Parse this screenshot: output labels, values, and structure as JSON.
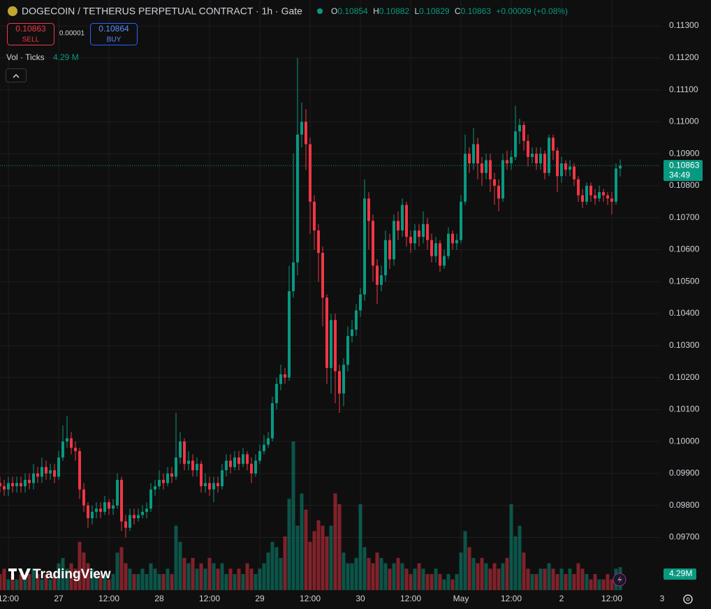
{
  "header": {
    "symbol": "DOGECOIN / TETHERUS PERPETUAL CONTRACT · 1h · Gate",
    "ohlc_labels": [
      "O",
      "H",
      "L",
      "C"
    ],
    "ohlc_values": [
      0.10854,
      0.10882,
      0.10829,
      0.10863
    ],
    "change": "+0.00009 (+0.08%)"
  },
  "trade": {
    "sell_price": 0.10863,
    "sell_label": "SELL",
    "spread": 1e-05,
    "buy_price": 0.10864,
    "buy_label": "BUY"
  },
  "volume_indicator": {
    "label": "Vol · Ticks",
    "value_label": "4.29 M"
  },
  "branding": "TradingView",
  "chart_data": {
    "type": "candlestick",
    "up_color": "#089981",
    "down_color": "#f23645",
    "candles": [
      [
        0.0987,
        0.0989,
        0.0984,
        0.0986
      ],
      [
        0.0986,
        0.0988,
        0.0983,
        0.0985
      ],
      [
        0.0985,
        0.0989,
        0.0983,
        0.0987
      ],
      [
        0.0987,
        0.0989,
        0.0984,
        0.0986
      ],
      [
        0.0986,
        0.0989,
        0.0984,
        0.0987
      ],
      [
        0.0987,
        0.0989,
        0.0984,
        0.0986
      ],
      [
        0.0986,
        0.099,
        0.0984,
        0.0988
      ],
      [
        0.0988,
        0.099,
        0.0985,
        0.0987
      ],
      [
        0.0987,
        0.0993,
        0.0985,
        0.099
      ],
      [
        0.099,
        0.0992,
        0.0987,
        0.0989
      ],
      [
        0.0989,
        0.0995,
        0.0987,
        0.0992
      ],
      [
        0.0992,
        0.0994,
        0.0988,
        0.099
      ],
      [
        0.099,
        0.0993,
        0.0988,
        0.0991
      ],
      [
        0.0991,
        0.0993,
        0.0987,
        0.0989
      ],
      [
        0.0989,
        0.0997,
        0.0988,
        0.0995
      ],
      [
        0.0995,
        0.1005,
        0.0994,
        0.1
      ],
      [
        0.1,
        0.1008,
        0.0998,
        0.1001
      ],
      [
        0.1001,
        0.1003,
        0.0996,
        0.0998
      ],
      [
        0.0998,
        0.1,
        0.0994,
        0.0997
      ],
      [
        0.0997,
        0.0998,
        0.0982,
        0.0985
      ],
      [
        0.0985,
        0.0987,
        0.0978,
        0.098
      ],
      [
        0.098,
        0.0981,
        0.0973,
        0.0976
      ],
      [
        0.0976,
        0.098,
        0.0974,
        0.0978
      ],
      [
        0.0978,
        0.0981,
        0.0976,
        0.0979
      ],
      [
        0.0979,
        0.0981,
        0.0976,
        0.0978
      ],
      [
        0.0978,
        0.0983,
        0.0977,
        0.0981
      ],
      [
        0.0981,
        0.0982,
        0.0977,
        0.0979
      ],
      [
        0.0979,
        0.0982,
        0.0977,
        0.098
      ],
      [
        0.098,
        0.099,
        0.0979,
        0.0988
      ],
      [
        0.0988,
        0.0989,
        0.0972,
        0.0975
      ],
      [
        0.0975,
        0.0977,
        0.097,
        0.0973
      ],
      [
        0.0973,
        0.0979,
        0.0972,
        0.0977
      ],
      [
        0.0977,
        0.0979,
        0.0974,
        0.0976
      ],
      [
        0.0976,
        0.0979,
        0.0975,
        0.0977
      ],
      [
        0.0977,
        0.098,
        0.0976,
        0.0978
      ],
      [
        0.0978,
        0.0981,
        0.0976,
        0.0979
      ],
      [
        0.0979,
        0.0987,
        0.0978,
        0.0985
      ],
      [
        0.0985,
        0.0988,
        0.0983,
        0.0986
      ],
      [
        0.0986,
        0.0991,
        0.0985,
        0.0988
      ],
      [
        0.0988,
        0.099,
        0.0985,
        0.0987
      ],
      [
        0.0987,
        0.0992,
        0.0986,
        0.099
      ],
      [
        0.099,
        0.0992,
        0.0987,
        0.0989
      ],
      [
        0.0989,
        0.1009,
        0.0988,
        0.0995
      ],
      [
        0.0995,
        0.1003,
        0.0993,
        0.1
      ],
      [
        0.1,
        0.1001,
        0.0991,
        0.0993
      ],
      [
        0.0993,
        0.0997,
        0.0991,
        0.0994
      ],
      [
        0.0994,
        0.0996,
        0.0989,
        0.0991
      ],
      [
        0.0991,
        0.0995,
        0.0989,
        0.0993
      ],
      [
        0.0993,
        0.0994,
        0.0984,
        0.0986
      ],
      [
        0.0986,
        0.099,
        0.0984,
        0.0987
      ],
      [
        0.0987,
        0.0989,
        0.0983,
        0.0985
      ],
      [
        0.0985,
        0.0989,
        0.0981,
        0.0987
      ],
      [
        0.0987,
        0.0989,
        0.0984,
        0.0986
      ],
      [
        0.0986,
        0.0993,
        0.0985,
        0.0991
      ],
      [
        0.0991,
        0.0996,
        0.0989,
        0.0994
      ],
      [
        0.0994,
        0.0996,
        0.099,
        0.0992
      ],
      [
        0.0992,
        0.0997,
        0.0991,
        0.0995
      ],
      [
        0.0995,
        0.0997,
        0.0991,
        0.0993
      ],
      [
        0.0993,
        0.0998,
        0.0992,
        0.0996
      ],
      [
        0.0996,
        0.0997,
        0.0991,
        0.0993
      ],
      [
        0.0993,
        0.0995,
        0.0987,
        0.099
      ],
      [
        0.099,
        0.0996,
        0.0989,
        0.0994
      ],
      [
        0.0994,
        0.0999,
        0.0993,
        0.0997
      ],
      [
        0.0997,
        0.1002,
        0.0996,
        0.0999
      ],
      [
        0.0999,
        0.1003,
        0.0998,
        0.1001
      ],
      [
        0.1001,
        0.1014,
        0.1,
        0.1012
      ],
      [
        0.1012,
        0.102,
        0.101,
        0.1018
      ],
      [
        0.1018,
        0.1024,
        0.1016,
        0.1021
      ],
      [
        0.1021,
        0.1023,
        0.1018,
        0.102
      ],
      [
        0.102,
        0.1055,
        0.1019,
        0.1047
      ],
      [
        0.1047,
        0.109,
        0.1045,
        0.1056
      ],
      [
        0.1056,
        0.112,
        0.1052,
        0.1096
      ],
      [
        0.1096,
        0.1106,
        0.1092,
        0.11
      ],
      [
        0.11,
        0.1104,
        0.1085,
        0.1093
      ],
      [
        0.1093,
        0.1095,
        0.1065,
        0.1075
      ],
      [
        0.1075,
        0.1077,
        0.106,
        0.1066
      ],
      [
        0.1066,
        0.1068,
        0.105,
        0.1059
      ],
      [
        0.1059,
        0.1061,
        0.1036,
        0.1045
      ],
      [
        0.1045,
        0.1046,
        0.1018,
        0.1023
      ],
      [
        0.1023,
        0.104,
        0.1015,
        0.1038
      ],
      [
        0.1038,
        0.104,
        0.1012,
        0.1022
      ],
      [
        0.1022,
        0.1024,
        0.1009,
        0.1015
      ],
      [
        0.1015,
        0.1026,
        0.1011,
        0.1024
      ],
      [
        0.1024,
        0.1036,
        0.1022,
        0.1033
      ],
      [
        0.1033,
        0.1038,
        0.1031,
        0.1035
      ],
      [
        0.1035,
        0.1043,
        0.1033,
        0.1041
      ],
      [
        0.1041,
        0.1048,
        0.1039,
        0.1046
      ],
      [
        0.1046,
        0.1082,
        0.1044,
        0.1076
      ],
      [
        0.1076,
        0.1078,
        0.106,
        0.1069
      ],
      [
        0.1069,
        0.1071,
        0.105,
        0.1055
      ],
      [
        0.1055,
        0.1057,
        0.1043,
        0.1049
      ],
      [
        0.1049,
        0.1055,
        0.1047,
        0.1052
      ],
      [
        0.1052,
        0.1066,
        0.105,
        0.1063
      ],
      [
        0.1063,
        0.1065,
        0.1054,
        0.1057
      ],
      [
        0.1057,
        0.1071,
        0.1055,
        0.1069
      ],
      [
        0.1069,
        0.1072,
        0.1063,
        0.1066
      ],
      [
        0.1066,
        0.1076,
        0.1064,
        0.1074
      ],
      [
        0.1074,
        0.1075,
        0.1061,
        0.1064
      ],
      [
        0.1064,
        0.1066,
        0.1059,
        0.1062
      ],
      [
        0.1062,
        0.1068,
        0.106,
        0.1066
      ],
      [
        0.1066,
        0.1068,
        0.1061,
        0.1064
      ],
      [
        0.1064,
        0.1072,
        0.1062,
        0.1068
      ],
      [
        0.1068,
        0.107,
        0.106,
        0.1063
      ],
      [
        0.1063,
        0.1065,
        0.1056,
        0.1058
      ],
      [
        0.1058,
        0.1064,
        0.1056,
        0.1062
      ],
      [
        0.1062,
        0.1063,
        0.1053,
        0.1055
      ],
      [
        0.1055,
        0.106,
        0.1054,
        0.1058
      ],
      [
        0.1058,
        0.1067,
        0.1057,
        0.1065
      ],
      [
        0.1065,
        0.1066,
        0.106,
        0.1062
      ],
      [
        0.1062,
        0.1065,
        0.106,
        0.1063
      ],
      [
        0.1063,
        0.1077,
        0.1062,
        0.1075
      ],
      [
        0.1075,
        0.1096,
        0.1074,
        0.109
      ],
      [
        0.109,
        0.1092,
        0.1084,
        0.1087
      ],
      [
        0.1087,
        0.1098,
        0.1085,
        0.1093
      ],
      [
        0.1093,
        0.1095,
        0.1082,
        0.1087
      ],
      [
        0.1087,
        0.1089,
        0.108,
        0.1084
      ],
      [
        0.1084,
        0.109,
        0.1082,
        0.1088
      ],
      [
        0.1088,
        0.109,
        0.1078,
        0.1082
      ],
      [
        0.1082,
        0.1084,
        0.1074,
        0.108
      ],
      [
        0.108,
        0.1082,
        0.1072,
        0.1076
      ],
      [
        0.1076,
        0.109,
        0.1075,
        0.1088
      ],
      [
        0.1088,
        0.1091,
        0.1085,
        0.1087
      ],
      [
        0.1087,
        0.1091,
        0.1085,
        0.1089
      ],
      [
        0.1089,
        0.1105,
        0.1088,
        0.1097
      ],
      [
        0.1097,
        0.1101,
        0.1093,
        0.1099
      ],
      [
        0.1099,
        0.11,
        0.1091,
        0.1094
      ],
      [
        0.1094,
        0.1096,
        0.1086,
        0.1089
      ],
      [
        0.1089,
        0.1092,
        0.1087,
        0.109
      ],
      [
        0.109,
        0.1092,
        0.1085,
        0.1087
      ],
      [
        0.1087,
        0.1092,
        0.1085,
        0.109
      ],
      [
        0.109,
        0.1091,
        0.1082,
        0.1084
      ],
      [
        0.1084,
        0.1096,
        0.1083,
        0.1095
      ],
      [
        0.1095,
        0.1096,
        0.1088,
        0.1091
      ],
      [
        0.1091,
        0.1092,
        0.1078,
        0.1083
      ],
      [
        0.1083,
        0.1089,
        0.1081,
        0.1087
      ],
      [
        0.1087,
        0.1088,
        0.1083,
        0.1085
      ],
      [
        0.1085,
        0.1088,
        0.1083,
        0.1086
      ],
      [
        0.1086,
        0.1087,
        0.108,
        0.1082
      ],
      [
        0.1082,
        0.1083,
        0.1075,
        0.1077
      ],
      [
        0.1077,
        0.1079,
        0.1073,
        0.1075
      ],
      [
        0.1075,
        0.1081,
        0.1074,
        0.108
      ],
      [
        0.108,
        0.1081,
        0.1075,
        0.1077
      ],
      [
        0.1077,
        0.1079,
        0.1074,
        0.1076
      ],
      [
        0.1076,
        0.108,
        0.1075,
        0.1078
      ],
      [
        0.1078,
        0.1079,
        0.1075,
        0.1077
      ],
      [
        0.1077,
        0.1078,
        0.1074,
        0.1076
      ],
      [
        0.1076,
        0.1078,
        0.1071,
        0.1075
      ],
      [
        0.1075,
        0.1087,
        0.1074,
        0.10854
      ],
      [
        0.10854,
        0.10882,
        0.10829,
        0.10863
      ]
    ],
    "volumes": [
      3,
      4,
      2,
      3,
      2,
      3,
      2,
      3,
      4,
      3,
      2,
      3,
      2,
      3,
      5,
      6,
      4,
      5,
      4,
      9,
      7,
      5,
      4,
      3,
      3,
      3,
      2,
      3,
      7,
      8,
      5,
      4,
      3,
      3,
      4,
      3,
      5,
      4,
      3,
      3,
      4,
      3,
      12,
      9,
      6,
      5,
      6,
      4,
      5,
      4,
      6,
      5,
      4,
      5,
      3,
      4,
      3,
      4,
      3,
      5,
      4,
      3,
      4,
      5,
      7,
      9,
      8,
      6,
      10,
      17,
      27.7,
      12,
      18,
      15,
      9,
      11,
      13,
      12,
      10,
      12,
      18,
      16,
      7,
      5,
      5,
      6,
      16,
      8,
      6,
      5,
      7,
      6,
      5,
      4,
      5,
      6,
      5,
      4,
      3,
      4,
      5,
      4,
      3,
      3,
      4,
      3,
      2,
      3,
      2,
      3,
      7,
      11,
      8,
      6,
      5,
      6,
      5,
      4,
      5,
      4,
      5,
      6,
      16,
      10,
      12,
      7,
      4,
      3,
      3,
      4,
      4,
      5,
      4,
      3,
      4,
      3,
      4,
      3,
      5,
      4,
      3,
      2,
      3,
      2,
      2,
      3,
      2,
      4,
      4.29
    ],
    "volume_label": "4.29M",
    "last_price": 0.10863,
    "countdown": "34:49",
    "ylim": [
      0.09535,
      0.11381
    ],
    "yticks": [
      {
        "value": 0.097,
        "label": "0.09700"
      },
      {
        "value": 0.098,
        "label": "0.09800"
      },
      {
        "value": 0.099,
        "label": "0.09900"
      },
      {
        "value": 0.1,
        "label": "0.10000"
      },
      {
        "value": 0.101,
        "label": "0.10100"
      },
      {
        "value": 0.102,
        "label": "0.10200"
      },
      {
        "value": 0.103,
        "label": "0.10300"
      },
      {
        "value": 0.104,
        "label": "0.10400"
      },
      {
        "value": 0.105,
        "label": "0.10500"
      },
      {
        "value": 0.106,
        "label": "0.10600"
      },
      {
        "value": 0.107,
        "label": "0.10700"
      },
      {
        "value": 0.108,
        "label": "0.10800"
      },
      {
        "value": 0.109,
        "label": "0.10900"
      },
      {
        "value": 0.11,
        "label": "0.11000"
      },
      {
        "value": 0.111,
        "label": "0.11100"
      },
      {
        "value": 0.112,
        "label": "0.11200"
      },
      {
        "value": 0.113,
        "label": "0.11300"
      }
    ],
    "xlim": [
      0,
      158
    ],
    "xticks": [
      {
        "value": 2,
        "label": "12:00"
      },
      {
        "value": 14,
        "label": "27"
      },
      {
        "value": 26,
        "label": "12:00"
      },
      {
        "value": 38,
        "label": "28"
      },
      {
        "value": 50,
        "label": "12:00"
      },
      {
        "value": 62,
        "label": "29"
      },
      {
        "value": 74,
        "label": "12:00"
      },
      {
        "value": 86,
        "label": "30"
      },
      {
        "value": 98,
        "label": "12:00"
      },
      {
        "value": 110,
        "label": "May"
      },
      {
        "value": 122,
        "label": "12:00"
      },
      {
        "value": 134,
        "label": "2"
      },
      {
        "value": 146,
        "label": "12:00"
      },
      {
        "value": 158,
        "label": "3"
      }
    ],
    "grid": true
  }
}
